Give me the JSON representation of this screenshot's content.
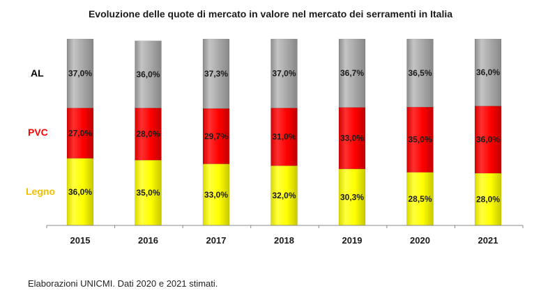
{
  "chart_data": {
    "type": "bar",
    "stacked": true,
    "title": "Evoluzione delle quote di mercato in valore nel mercato dei serramenti in Italia",
    "categories": [
      "2015",
      "2016",
      "2017",
      "2018",
      "2019",
      "2020",
      "2021"
    ],
    "series": [
      {
        "name": "Legno",
        "color": "#ffff00",
        "values": [
          36.0,
          35.0,
          33.0,
          32.0,
          30.3,
          28.5,
          28.0
        ],
        "labels": [
          "36,0%",
          "35,0%",
          "33,0%",
          "32,0%",
          "30,3%",
          "28,5%",
          "28,0%"
        ]
      },
      {
        "name": "PVC",
        "color": "#ff0000",
        "values": [
          27.0,
          28.0,
          29.7,
          31.0,
          33.0,
          35.0,
          36.0
        ],
        "labels": [
          "27,0%",
          "28,0%",
          "29,7%",
          "31,0%",
          "33,0%",
          "35,0%",
          "36,0%"
        ]
      },
      {
        "name": "AL",
        "color": "#a6a6a6",
        "values": [
          37.0,
          36.0,
          37.3,
          37.0,
          36.7,
          36.5,
          36.0
        ],
        "labels": [
          "37,0%",
          "36,0%",
          "37,3%",
          "37,0%",
          "36,7%",
          "36,5%",
          "36,0%"
        ]
      }
    ],
    "legend": "left",
    "grid": false,
    "ylim": [
      0,
      100
    ]
  },
  "legend_colors": {
    "Legno": "#f0c000",
    "PVC": "#ff0000",
    "AL": "#000000"
  },
  "footnote": "Elaborazioni UNICMI. Dati 2020 e 2021 stimati."
}
